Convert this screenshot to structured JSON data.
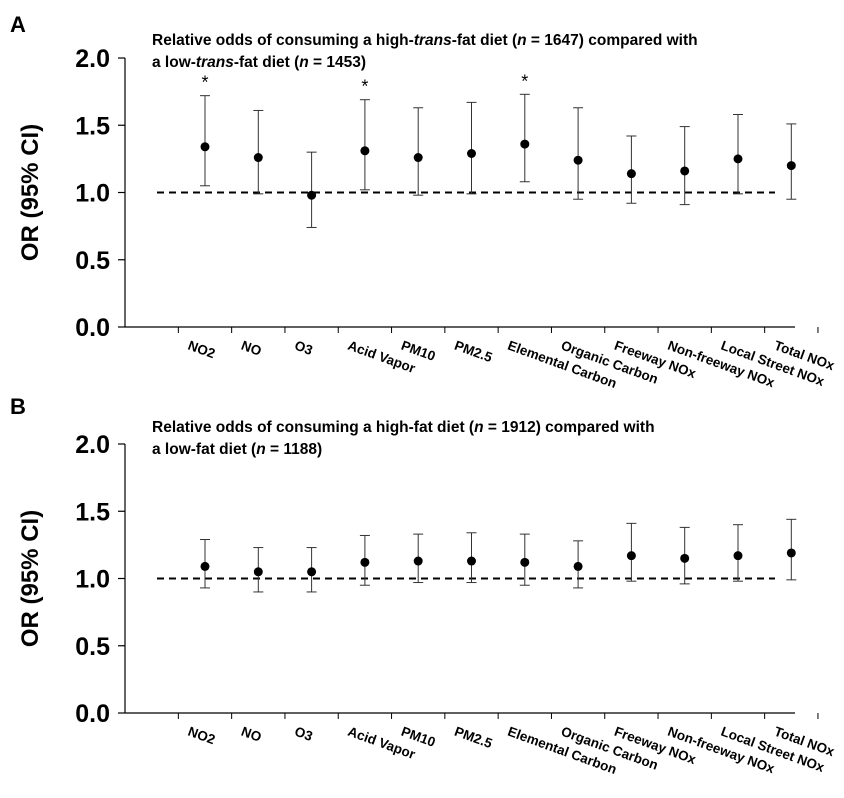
{
  "chart_data": [
    {
      "panel": "A",
      "type": "scatter",
      "title_parts": [
        [
          {
            "t": "Relative odds of consuming a high-",
            "i": false
          },
          {
            "t": "trans",
            "i": true
          },
          {
            "t": "-fat diet  (",
            "i": false
          },
          {
            "t": "n",
            "i": true
          },
          {
            "t": " = 1647) compared with",
            "i": false
          }
        ],
        [
          {
            "t": "a low-",
            "i": false
          },
          {
            "t": "trans",
            "i": true
          },
          {
            "t": "-fat diet (",
            "i": false
          },
          {
            "t": "n",
            "i": true
          },
          {
            "t": " = 1453)",
            "i": false
          }
        ]
      ],
      "ylabel": "OR (95% CI)",
      "ylim": [
        0,
        2
      ],
      "yticks": [
        "0.0",
        "0.5",
        "1.0",
        "1.5",
        "2.0"
      ],
      "reference_line": 1.0,
      "categories": [
        "NO2",
        "NO",
        "O3",
        "Acid Vapor",
        "PM10",
        "PM2.5",
        "Elemental Carbon",
        "Organic Carbon",
        "Freeway NOx",
        "Non-freeway NOx",
        "Local Street NOx",
        "Total NOx"
      ],
      "or": [
        1.34,
        1.26,
        0.98,
        1.31,
        1.26,
        1.29,
        1.36,
        1.24,
        1.14,
        1.16,
        1.25,
        1.2
      ],
      "ci_low": [
        1.05,
        0.99,
        0.74,
        1.02,
        0.98,
        0.99,
        1.08,
        0.95,
        0.92,
        0.91,
        0.99,
        0.95
      ],
      "ci_high": [
        1.72,
        1.61,
        1.3,
        1.69,
        1.63,
        1.67,
        1.73,
        1.63,
        1.42,
        1.49,
        1.58,
        1.51
      ],
      "significant": [
        "*",
        "",
        "",
        "*",
        "",
        "",
        "*",
        "",
        "",
        "",
        "",
        ""
      ]
    },
    {
      "panel": "B",
      "type": "scatter",
      "title_parts": [
        [
          {
            "t": "Relative odds of consuming a high-fat diet (",
            "i": false
          },
          {
            "t": "n",
            "i": true
          },
          {
            "t": " = 1912) compared with",
            "i": false
          }
        ],
        [
          {
            "t": "a low-fat diet (",
            "i": false
          },
          {
            "t": "n",
            "i": true
          },
          {
            "t": " = 1188)",
            "i": false
          }
        ]
      ],
      "ylabel": "OR (95% CI)",
      "ylim": [
        0,
        2
      ],
      "yticks": [
        "0.0",
        "0.5",
        "1.0",
        "1.5",
        "2.0"
      ],
      "reference_line": 1.0,
      "categories": [
        "NO2",
        "NO",
        "O3",
        "Acid Vapor",
        "PM10",
        "PM2.5",
        "Elemental Carbon",
        "Organic Carbon",
        "Freeway NOx",
        "Non-freeway NOx",
        "Local Street NOx",
        "Total NOx"
      ],
      "or": [
        1.09,
        1.05,
        1.05,
        1.12,
        1.13,
        1.13,
        1.12,
        1.09,
        1.17,
        1.15,
        1.17,
        1.19
      ],
      "ci_low": [
        0.93,
        0.9,
        0.9,
        0.95,
        0.97,
        0.97,
        0.95,
        0.93,
        0.98,
        0.96,
        0.98,
        0.99
      ],
      "ci_high": [
        1.29,
        1.23,
        1.23,
        1.32,
        1.33,
        1.34,
        1.33,
        1.28,
        1.41,
        1.38,
        1.4,
        1.44
      ],
      "significant": [
        "",
        "",
        "",
        "",
        "",
        "",
        "",
        "",
        "",
        "",
        "",
        ""
      ]
    }
  ]
}
